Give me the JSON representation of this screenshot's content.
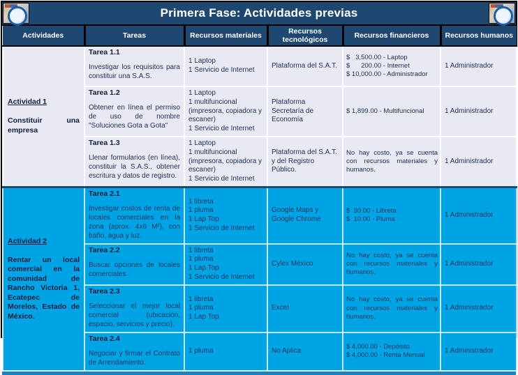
{
  "header": {
    "title": "Primera Fase: Actividades previas",
    "columns": [
      "Actividades",
      "Tareas",
      "Recursos materiales",
      "Recursos tecnológicos",
      "Recursos financieros",
      "Recursos humanos"
    ]
  },
  "activities": [
    {
      "label": "Actividad 1",
      "description": "Constituir una empresa",
      "tasks": [
        {
          "title": "Tarea 1.1",
          "description": "Investigar los requisitos para constituir una S.A.S.",
          "materials": [
            "1 Laptop",
            "1 Servicio de Internet"
          ],
          "tech": "Plataforma del S.A.T.",
          "financial": [
            "$   3,500.00 - Laptop",
            "$      200.00 - Internet",
            "$ 10,000.00 - Administrador"
          ],
          "human": "1 Administrador"
        },
        {
          "title": "Tarea 1.2",
          "description": "Obtener en línea el permiso de uso de nombre \"Soluciones Gota a Gota\"",
          "materials": [
            "1 Laptop",
            "1 multifuncional (impresora, copiadora y escaner)",
            "1 Servicio de Internet"
          ],
          "tech": "Plataforma Secretaría de Economía",
          "financial": [
            "$ 1,899.00 - Multifuncional"
          ],
          "human": "1 Administrador"
        },
        {
          "title": "Tarea 1.3",
          "description": "Llenar formularios (en línea), constituir la S.A.S., obtener escritura y datos de registro.",
          "materials": [
            "1 Laptop",
            "1 multifuncional (impresora, copiadora y escaner)",
            "1 Servicio de Internet"
          ],
          "tech": "Plataforma del S.A.T. y del Registro Público.",
          "financial": [
            "No hay costo, ya se cuenta con recursos materiales y humanos."
          ],
          "human": "1 Administrador"
        }
      ]
    },
    {
      "label": "Actividad 2",
      "description": "Rentar un local comercial en la comunidad de Rancho Victoria 1, Ecatepec de Morelos, Estado de México.",
      "tasks": [
        {
          "title": "Tarea 2.1",
          "description": "Investigar costos de renta de locales comerciales en la zona (aprox. 4x6 M²), con baño, agua y luz.",
          "materials": [
            "1 libreta",
            "1 pluma",
            "1 Lap Top",
            "1 Servicio de Internet"
          ],
          "tech": "Google Maps y Google Chrome",
          "financial": [
            "$  30.00 - Libreta",
            "$  10.00 - Pluma"
          ],
          "human": "1 Administrador"
        },
        {
          "title": "Tarea 2.2",
          "description": "Buscar opciones de locales comerciales.",
          "materials": [
            "1 libreta",
            "1 pluma",
            "1 Lap Top",
            "1 Servicio de Internet"
          ],
          "tech": "Cylex México",
          "financial": [
            "No hay costo, ya se cuenta con recursos materiales y humanos."
          ],
          "human": "1 Administrador"
        },
        {
          "title": "Tarea 2.3",
          "description": "Seleccionar el mejor local comercial (ubicación, espacio, servicios y precio).",
          "materials": [
            "1 libreta",
            "1 pluma",
            "1 Lap Top"
          ],
          "tech": "Excel",
          "financial": [
            "No hay costo, ya se cuenta con recursos materiales y humanos."
          ],
          "human": "1 Administrador"
        },
        {
          "title": "Tarea 2.4",
          "description": "Negociar y firmar el Contrato de Arrendamiento.",
          "materials": [
            "1 pluma"
          ],
          "tech": "No Aplica",
          "financial": [
            "$ 4,000.00 - Depósito",
            "$ 4,000.00 - Renta Menual"
          ],
          "human": "1 Administrador"
        }
      ]
    }
  ],
  "colors": {
    "navy": "#1E4870",
    "act1_bg": "#E9E9F3",
    "act2_bg": "#00A3E4",
    "strip": "#1583C9"
  }
}
